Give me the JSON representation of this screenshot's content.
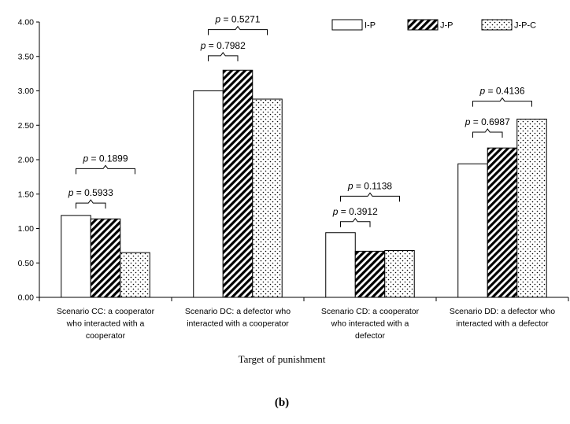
{
  "chart_data": {
    "type": "bar",
    "xlabel": "Target of punishment",
    "ylabel": "",
    "panel_label": "(b)",
    "ylim": [
      0,
      4
    ],
    "yticks": [
      "0.00",
      "0.50",
      "1.00",
      "1.50",
      "2.00",
      "2.50",
      "3.00",
      "3.50",
      "4.00"
    ],
    "categories": [
      [
        "Scenario CC: a cooperator",
        "who interacted with a",
        "cooperator"
      ],
      [
        "Scenario DC: a defector who",
        "interacted with a cooperator"
      ],
      [
        "Scenario CD: a cooperator",
        "who interacted with a",
        "defector"
      ],
      [
        "Scenario DD: a defector who",
        "interacted with a defector"
      ]
    ],
    "series": [
      {
        "name": "I-P",
        "pattern": "white",
        "values": [
          1.19,
          3.0,
          0.94,
          1.94
        ]
      },
      {
        "name": "J-P",
        "pattern": "hatch",
        "values": [
          1.14,
          3.3,
          0.67,
          2.17
        ]
      },
      {
        "name": "J-P-C",
        "pattern": "dots",
        "values": [
          0.65,
          2.88,
          0.68,
          2.59
        ]
      }
    ],
    "annotations": [
      {
        "category": 0,
        "from": 0,
        "to": 1,
        "text": "= 0.5933",
        "level": 1.37
      },
      {
        "category": 0,
        "from": 0,
        "to": 2,
        "text": "= 0.1899",
        "level": 1.87
      },
      {
        "category": 1,
        "from": 0,
        "to": 1,
        "text": "= 0.7982",
        "level": 3.51
      },
      {
        "category": 1,
        "from": 0,
        "to": 2,
        "text": "= 0.5271",
        "level": 3.89
      },
      {
        "category": 2,
        "from": 0,
        "to": 1,
        "text": "= 0.3912",
        "level": 1.1
      },
      {
        "category": 2,
        "from": 0,
        "to": 2,
        "text": "= 0.1138",
        "level": 1.47
      },
      {
        "category": 3,
        "from": 0,
        "to": 1,
        "text": "= 0.6987",
        "level": 2.4
      },
      {
        "category": 3,
        "from": 0,
        "to": 2,
        "text": "= 0.4136",
        "level": 2.85
      }
    ],
    "p_symbol": "p",
    "grid": false,
    "legend_position": "top-right"
  }
}
